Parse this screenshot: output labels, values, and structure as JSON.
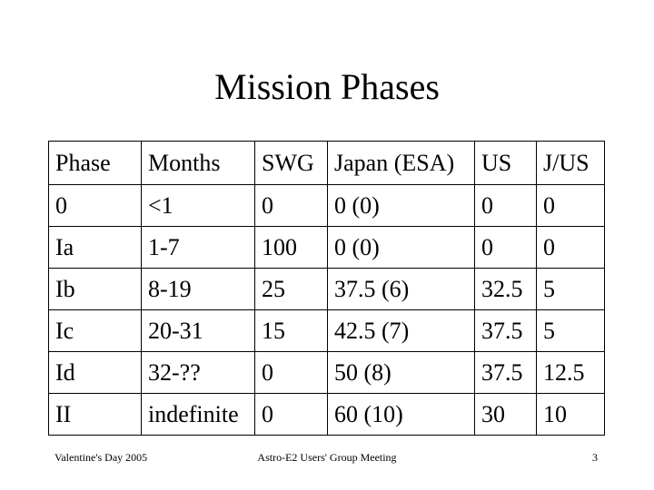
{
  "slide": {
    "title": "Mission Phases",
    "table": {
      "headers": [
        "Phase",
        "Months",
        "SWG",
        "Japan (ESA)",
        "US",
        "J/US"
      ],
      "rows": [
        [
          "0",
          "<1",
          "0",
          "0 (0)",
          "0",
          "0"
        ],
        [
          "Ia",
          "1-7",
          "100",
          "0 (0)",
          "0",
          "0"
        ],
        [
          "Ib",
          "8-19",
          "25",
          "37.5 (6)",
          "32.5",
          "5"
        ],
        [
          "Ic",
          "20-31",
          "15",
          "42.5 (7)",
          "37.5",
          "5"
        ],
        [
          "Id",
          "32-??",
          "0",
          "50 (8)",
          "37.5",
          "12.5"
        ],
        [
          "II",
          "indefinite",
          "0",
          "60 (10)",
          "30",
          "10"
        ]
      ]
    },
    "footer": {
      "left": "Valentine's Day 2005",
      "center": "Astro-E2 Users' Group Meeting",
      "page_number": "3"
    }
  }
}
